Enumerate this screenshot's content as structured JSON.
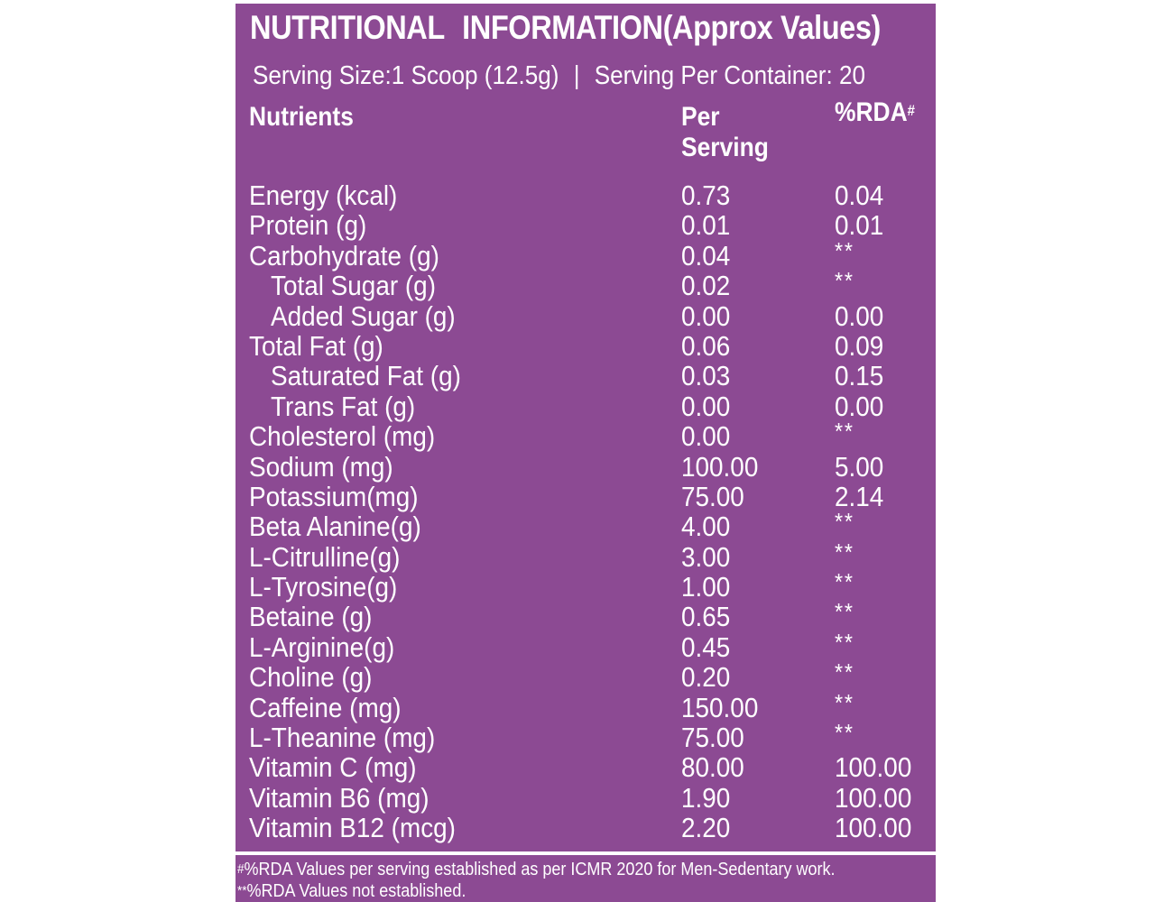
{
  "label": {
    "title_part1": "NUTRITIONAL",
    "title_part2": "INFORMATION(Approx Values)",
    "serving_size": "Serving Size:1 Scoop (12.5g)",
    "separator": "|",
    "servings_per_container": "Serving Per Container: 20",
    "headers": {
      "nutrients": "Nutrients",
      "per_line1": "Per",
      "per_line2": "Serving",
      "rda": "%RDA",
      "rda_mark": "#"
    },
    "rows": [
      {
        "name": "Energy (kcal)",
        "per": "0.73",
        "rda": "0.04"
      },
      {
        "name": "Protein (g)",
        "per": "0.01",
        "rda": "0.01"
      },
      {
        "name": "Carbohydrate (g)",
        "per": "0.04",
        "rda": "**"
      },
      {
        "name": "Total Sugar (g)",
        "per": "0.02",
        "rda": "**"
      },
      {
        "name": "Added Sugar (g)",
        "per": "0.00",
        "rda": "0.00"
      },
      {
        "name": "Total Fat (g)",
        "per": "0.06",
        "rda": "0.09"
      },
      {
        "name": "Saturated Fat (g)",
        "per": "0.03",
        "rda": "0.15"
      },
      {
        "name": "Trans Fat (g)",
        "per": "0.00",
        "rda": "0.00"
      },
      {
        "name": "Cholesterol (mg)",
        "per": "0.00",
        "rda": "**"
      },
      {
        "name": "Sodium (mg)",
        "per": "100.00",
        "rda": "5.00"
      },
      {
        "name": "Potassium(mg)",
        "per": "75.00",
        "rda": "2.14"
      },
      {
        "name": "Beta Alanine(g)",
        "per": "4.00",
        "rda": "**"
      },
      {
        "name": "L-Citrulline(g)",
        "per": "3.00",
        "rda": "**"
      },
      {
        "name": "L-Tyrosine(g)",
        "per": "1.00",
        "rda": "**"
      },
      {
        "name": "Betaine (g)",
        "per": "0.65",
        "rda": "**"
      },
      {
        "name": "L-Arginine(g)",
        "per": "0.45",
        "rda": "**"
      },
      {
        "name": "Choline (g)",
        "per": "0.20",
        "rda": "**"
      },
      {
        "name": "Caffeine (mg)",
        "per": "150.00",
        "rda": "**"
      },
      {
        "name": "L-Theanine (mg)",
        "per": "75.00",
        "rda": "**"
      },
      {
        "name": "Vitamin C (mg)",
        "per": "80.00",
        "rda": "100.00"
      },
      {
        "name": "Vitamin B6 (mg)",
        "per": "1.90",
        "rda": "100.00"
      },
      {
        "name": "Vitamin B12 (mcg)",
        "per": "2.20",
        "rda": "100.00"
      }
    ],
    "footnote1_mark": "#",
    "footnote1": "%RDA Values per serving established as per ICMR 2020 for Men-Sedentary work.",
    "footnote2_mark": "**",
    "footnote2": "%RDA Values not established.",
    "colors": {
      "panel": "#8c4a93",
      "text": "#ffffff"
    }
  }
}
